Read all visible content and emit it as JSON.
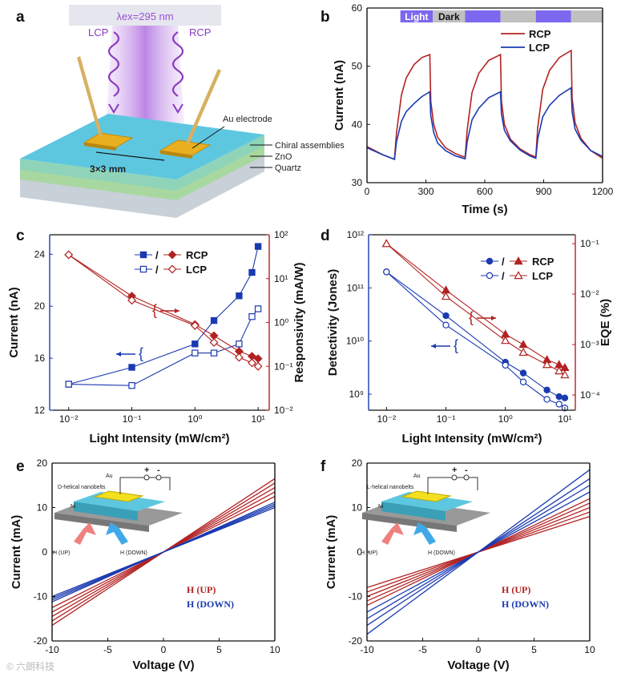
{
  "panels": {
    "a": {
      "label": "a",
      "excitation": "λex=295 nm",
      "lcp_label": "LCP",
      "rcp_label": "RCP",
      "electrode_label": "Au electrode",
      "layers": [
        "Chiral assemblies",
        "ZnO",
        "Quartz"
      ],
      "gap_label": "3×3 mm",
      "colors": {
        "beam": "#c9a0e8",
        "wave": "#8a3ac0",
        "top": "#5ec7e0",
        "zno": "#a8d8a0",
        "quartz": "#c8d0d8",
        "gold": "#e8b020"
      }
    },
    "b": {
      "label": "b"
    },
    "c": {
      "label": "c",
      "arrow_symbol": "{",
      "rcp_marker_sep": "/",
      "lcp_marker_sep": "/"
    },
    "d": {
      "label": "d",
      "arrow_symbol": "{",
      "rcp_marker_sep": "/",
      "lcp_marker_sep": "/"
    },
    "e": {
      "label": "e",
      "inset": {
        "nano": "D-helical nanobelts",
        "au": "Au",
        "ni": "Ni",
        "plus": "+",
        "minus": "-",
        "up": "H (UP)",
        "down": "H (DOWN)"
      }
    },
    "f": {
      "label": "f",
      "inset": {
        "nano": "L-helical nanobelts",
        "au": "Au",
        "ni": "Ni",
        "plus": "+",
        "minus": "-",
        "up": "H (UP)",
        "down": "H (DOWN)"
      }
    }
  },
  "watermark": "© 六朗科技",
  "chart_data": [
    {
      "id": "b",
      "type": "line",
      "xlabel": "Time (s)",
      "ylabel": "Current (nA)",
      "xlim": [
        0,
        1200
      ],
      "ylim": [
        30,
        60
      ],
      "xticks": [
        0,
        300,
        600,
        900,
        1200
      ],
      "yticks": [
        30,
        40,
        50,
        60
      ],
      "period_bar": [
        {
          "label": "Light",
          "start": 170,
          "end": 335,
          "color": "#7b68ee",
          "text_color": "#ffffff"
        },
        {
          "label": "Dark",
          "start": 335,
          "end": 500,
          "color": "#c0c0c0",
          "text_color": "#111111"
        },
        {
          "label": "",
          "start": 500,
          "end": 680,
          "color": "#7b68ee"
        },
        {
          "label": "",
          "start": 680,
          "end": 860,
          "color": "#c0c0c0"
        },
        {
          "label": "",
          "start": 860,
          "end": 1040,
          "color": "#7b68ee"
        },
        {
          "label": "",
          "start": 1040,
          "end": 1200,
          "color": "#c0c0c0"
        }
      ],
      "series": [
        {
          "name": "RCP",
          "color": "#b22222",
          "x": [
            0,
            80,
            140,
            150,
            175,
            200,
            240,
            280,
            320,
            325,
            340,
            360,
            400,
            450,
            480,
            500,
            510,
            535,
            570,
            620,
            680,
            685,
            700,
            730,
            780,
            830,
            860,
            870,
            895,
            930,
            980,
            1040,
            1045,
            1060,
            1090,
            1140,
            1200
          ],
          "values": [
            36.2,
            34.8,
            34.0,
            38.5,
            45.0,
            48.0,
            50.3,
            51.5,
            52.0,
            44.0,
            40.0,
            37.8,
            36.0,
            35.0,
            34.6,
            34.4,
            39.0,
            45.5,
            48.8,
            51.0,
            52.0,
            44.0,
            40.0,
            37.5,
            35.8,
            34.8,
            34.4,
            39.5,
            46.0,
            49.3,
            51.5,
            52.7,
            44.5,
            40.3,
            37.6,
            35.5,
            34.2
          ]
        },
        {
          "name": "LCP",
          "color": "#1a3ab0",
          "x": [
            0,
            80,
            140,
            150,
            175,
            200,
            240,
            280,
            320,
            325,
            340,
            360,
            400,
            450,
            480,
            500,
            510,
            535,
            570,
            620,
            680,
            685,
            700,
            730,
            780,
            830,
            860,
            870,
            895,
            930,
            980,
            1040,
            1045,
            1060,
            1090,
            1140,
            1200
          ],
          "values": [
            36.0,
            34.8,
            34.0,
            37.0,
            40.5,
            42.2,
            43.6,
            44.8,
            45.6,
            41.5,
            38.6,
            36.8,
            35.5,
            34.6,
            34.3,
            34.1,
            37.0,
            40.8,
            42.8,
            44.6,
            45.6,
            41.8,
            39.0,
            37.2,
            35.6,
            34.6,
            34.2,
            37.5,
            41.3,
            43.3,
            45.0,
            46.3,
            42.2,
            39.2,
            37.3,
            35.5,
            34.5
          ]
        }
      ]
    },
    {
      "id": "c",
      "type": "line",
      "xlabel": "Light Intensity  (mW/cm²)",
      "ylabel": "Current (nA)",
      "y2label": "Responsivity (mA/W)",
      "xscale": "log",
      "xlim": [
        0.005,
        15
      ],
      "ylim": [
        12,
        25.5
      ],
      "y2lim": [
        0.01,
        100
      ],
      "xticks": [
        0.01,
        0.1,
        1,
        10
      ],
      "xtick_labels": [
        "10⁻²",
        "10⁻¹",
        "10⁰",
        "10¹"
      ],
      "yticks": [
        12,
        16,
        20,
        24
      ],
      "y2ticks": [
        0.01,
        0.1,
        1,
        10,
        100
      ],
      "y2tick_labels": [
        "10⁻²",
        "10⁻¹",
        "10⁰",
        "10¹",
        "10²"
      ],
      "x": [
        0.01,
        0.1,
        1,
        2,
        5,
        8,
        10
      ],
      "series": [
        {
          "name": "RCP",
          "quantity": "current",
          "axis": "left",
          "color": "#1a3ab0",
          "marker": "square-filled",
          "values": [
            14.0,
            15.3,
            17.1,
            18.9,
            20.8,
            22.6,
            24.6
          ]
        },
        {
          "name": "LCP",
          "quantity": "current",
          "axis": "left",
          "color": "#1a3ab0",
          "marker": "square-open",
          "values": [
            14.0,
            13.9,
            16.4,
            16.4,
            17.1,
            19.2,
            19.8
          ]
        },
        {
          "name": "RCP",
          "quantity": "responsivity",
          "axis": "right",
          "color": "#b22222",
          "marker": "diamond-filled",
          "values": [
            35,
            4.0,
            0.9,
            0.5,
            0.22,
            0.17,
            0.15
          ]
        },
        {
          "name": "LCP",
          "quantity": "responsivity",
          "axis": "right",
          "color": "#b22222",
          "marker": "diamond-open",
          "values": [
            35,
            3.2,
            0.85,
            0.35,
            0.16,
            0.12,
            0.1
          ]
        }
      ],
      "legend": [
        "RCP",
        "LCP"
      ]
    },
    {
      "id": "d",
      "type": "line",
      "xlabel": "Light Intensity (mW/cm²)",
      "ylabel": "Detectivity (Jones)",
      "y2label": "EQE (%)",
      "xscale": "log",
      "xlim": [
        0.005,
        15
      ],
      "ylim": [
        500000000,
        1000000000000
      ],
      "y2lim": [
        5e-05,
        0.15
      ],
      "xticks": [
        0.01,
        0.1,
        1,
        10
      ],
      "xtick_labels": [
        "10⁻²",
        "10⁻¹",
        "10⁰",
        "10¹"
      ],
      "yticks": [
        1000000000,
        10000000000,
        100000000000,
        1000000000000
      ],
      "ytick_labels": [
        "10⁹",
        "10¹⁰",
        "10¹¹",
        "10¹²"
      ],
      "y2ticks": [
        0.0001,
        0.001,
        0.01,
        0.1
      ],
      "y2tick_labels": [
        "10⁻⁴",
        "10⁻³",
        "10⁻²",
        "10⁻¹"
      ],
      "x": [
        0.01,
        0.1,
        1,
        2,
        5,
        8,
        10
      ],
      "series": [
        {
          "name": "RCP",
          "quantity": "detectivity",
          "axis": "left",
          "color": "#1a3ab0",
          "marker": "circle-filled",
          "values": [
            200000000000,
            30000000000,
            4000000000,
            2500000000,
            1200000000,
            900000000,
            850000000
          ]
        },
        {
          "name": "LCP",
          "quantity": "detectivity",
          "axis": "left",
          "color": "#1a3ab0",
          "marker": "circle-open",
          "values": [
            200000000000,
            20000000000,
            3500000000,
            1700000000,
            800000000,
            650000000,
            550000000
          ]
        },
        {
          "name": "RCP",
          "quantity": "EQE",
          "axis": "right",
          "color": "#b22222",
          "marker": "triangle-filled",
          "values": [
            0.1,
            0.012,
            0.0016,
            0.001,
            0.0005,
            0.0004,
            0.00035
          ]
        },
        {
          "name": "LCP",
          "quantity": "EQE",
          "axis": "right",
          "color": "#b22222",
          "marker": "triangle-open",
          "values": [
            0.1,
            0.009,
            0.0012,
            0.0007,
            0.0004,
            0.0003,
            0.00025
          ]
        }
      ],
      "legend": [
        "RCP",
        "LCP"
      ]
    },
    {
      "id": "e",
      "type": "line",
      "xlabel": "Voltage (V)",
      "ylabel": "Current (mA)",
      "xlim": [
        -10,
        10
      ],
      "ylim": [
        -20,
        20
      ],
      "xticks": [
        -10,
        -5,
        0,
        5,
        10
      ],
      "yticks": [
        -20,
        -10,
        0,
        10,
        20
      ],
      "legend": [
        "H (UP)",
        "H (DOWN)"
      ],
      "series": [
        {
          "name": "H (UP)",
          "color": "#b22222",
          "slopes": [
            1.65,
            1.55,
            1.45,
            1.35,
            1.25
          ]
        },
        {
          "name": "H (DOWN)",
          "color": "#1a3ab0",
          "slopes": [
            1.12,
            1.08,
            1.04,
            1.0
          ]
        }
      ]
    },
    {
      "id": "f",
      "type": "line",
      "xlabel": "Voltage (V)",
      "ylabel": "Current (mA)",
      "xlim": [
        -10,
        10
      ],
      "ylim": [
        -20,
        20
      ],
      "xticks": [
        -10,
        -5,
        0,
        5,
        10
      ],
      "yticks": [
        -20,
        -10,
        0,
        10,
        20
      ],
      "legend": [
        "H (UP)",
        "H (DOWN)"
      ],
      "series": [
        {
          "name": "H (UP)",
          "color": "#b22222",
          "slopes": [
            1.2,
            1.1,
            1.0,
            0.9,
            0.8
          ]
        },
        {
          "name": "H (DOWN)",
          "color": "#1a3ab0",
          "slopes": [
            1.85,
            1.65,
            1.5,
            1.35
          ]
        }
      ]
    }
  ]
}
